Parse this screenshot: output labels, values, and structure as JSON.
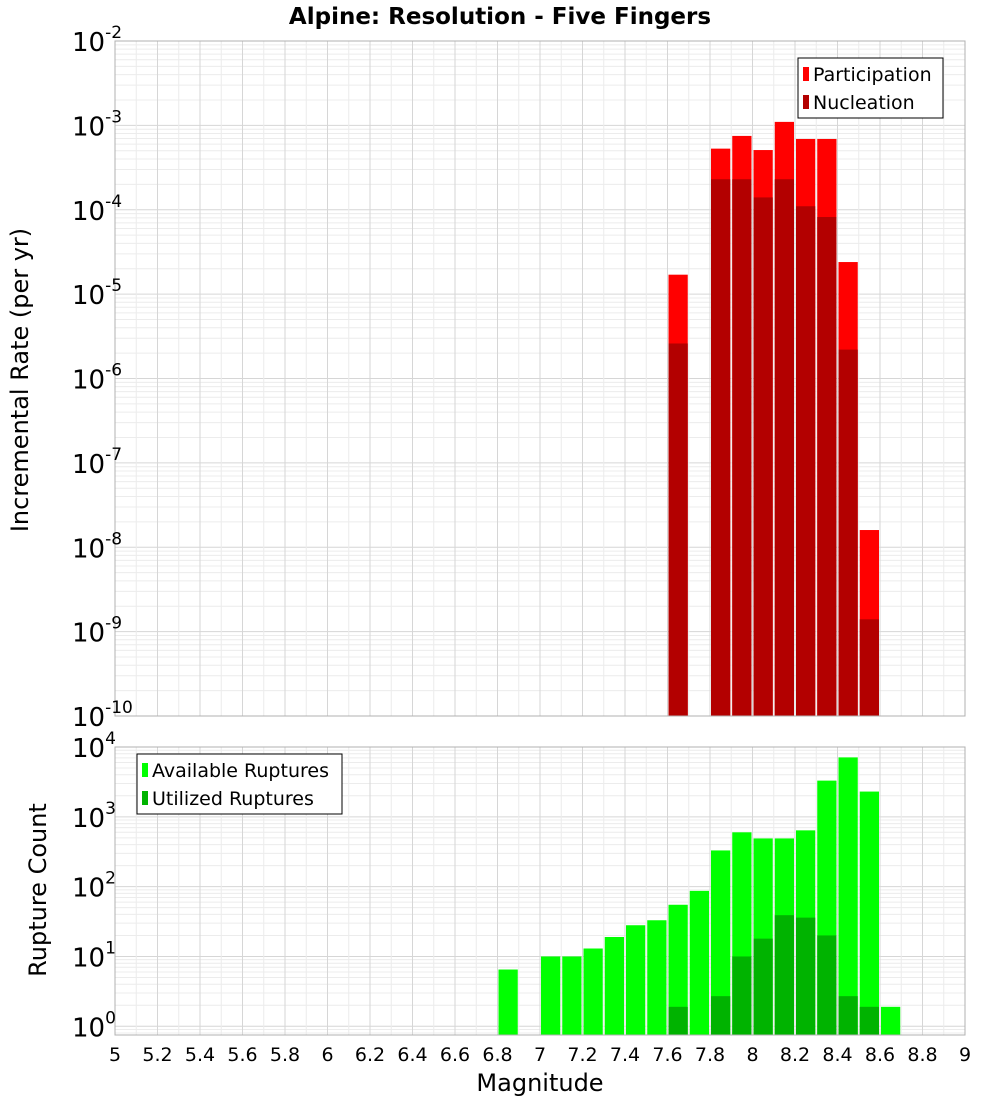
{
  "chart_data": [
    {
      "type": "bar",
      "title": "Alpine: Resolution - Five Fingers",
      "xlabel": "",
      "ylabel": "Incremental Rate (per yr)",
      "y_scale": "log",
      "ylim": [
        1e-10,
        0.01
      ],
      "xlim": [
        5,
        9
      ],
      "grid": true,
      "legend_position": "top-right",
      "bin_width": 0.1,
      "x": [
        7.65,
        7.85,
        7.95,
        8.05,
        8.15,
        8.25,
        8.35,
        8.45,
        8.55
      ],
      "series": [
        {
          "name": "Participation",
          "color": "#ff0000",
          "values": [
            1.7e-05,
            0.00053,
            0.00075,
            0.00051,
            0.0011,
            0.00069,
            0.00069,
            2.4e-05,
            1.6e-08
          ]
        },
        {
          "name": "Nucleation",
          "color": "#b30000",
          "values": [
            2.6e-06,
            0.00023,
            0.00023,
            0.00014,
            0.00023,
            0.00011,
            8.2e-05,
            2.2e-06,
            1.4e-09
          ]
        }
      ],
      "y_ticks": [
        {
          "mantissa": "10",
          "exp": "-2"
        },
        {
          "mantissa": "10",
          "exp": "-3"
        },
        {
          "mantissa": "10",
          "exp": "-4"
        },
        {
          "mantissa": "10",
          "exp": "-5"
        },
        {
          "mantissa": "10",
          "exp": "-6"
        },
        {
          "mantissa": "10",
          "exp": "-7"
        },
        {
          "mantissa": "10",
          "exp": "-8"
        },
        {
          "mantissa": "10",
          "exp": "-9"
        },
        {
          "mantissa": "10",
          "exp": "-10"
        }
      ]
    },
    {
      "type": "bar",
      "title": "",
      "xlabel": "Magnitude",
      "ylabel": "Rupture Count",
      "y_scale": "log",
      "ylim": [
        0.75,
        10000
      ],
      "xlim": [
        5,
        9
      ],
      "grid": true,
      "legend_position": "top-left",
      "bin_width": 0.1,
      "x": [
        6.85,
        6.95,
        7.05,
        7.15,
        7.25,
        7.35,
        7.45,
        7.55,
        7.65,
        7.75,
        7.85,
        7.95,
        8.05,
        8.15,
        8.25,
        8.35,
        8.45,
        8.55,
        8.65
      ],
      "series": [
        {
          "name": "Available Ruptures",
          "color": "#00ff00",
          "values": [
            6.5,
            0,
            10,
            10,
            13,
            19,
            28,
            33,
            55,
            87,
            330,
            600,
            490,
            490,
            640,
            3300,
            7100,
            2300,
            1.9
          ]
        },
        {
          "name": "Utilized Ruptures",
          "color": "#00b300",
          "values": [
            0,
            0,
            0,
            0,
            0,
            0,
            0,
            0,
            1.9,
            0,
            2.7,
            10,
            18,
            39,
            36,
            20,
            2.7,
            1.9,
            0
          ]
        }
      ],
      "x_tick_labels": [
        "5",
        "5.2",
        "5.4",
        "5.6",
        "5.8",
        "6",
        "6.2",
        "6.4",
        "6.6",
        "6.8",
        "7",
        "7.2",
        "7.4",
        "7.6",
        "7.8",
        "8",
        "8.2",
        "8.4",
        "8.6",
        "8.8",
        "9"
      ],
      "y_ticks": [
        {
          "mantissa": "10",
          "exp": "4"
        },
        {
          "mantissa": "10",
          "exp": "3"
        },
        {
          "mantissa": "10",
          "exp": "2"
        },
        {
          "mantissa": "10",
          "exp": "1"
        },
        {
          "mantissa": "10",
          "exp": "0"
        }
      ]
    }
  ]
}
